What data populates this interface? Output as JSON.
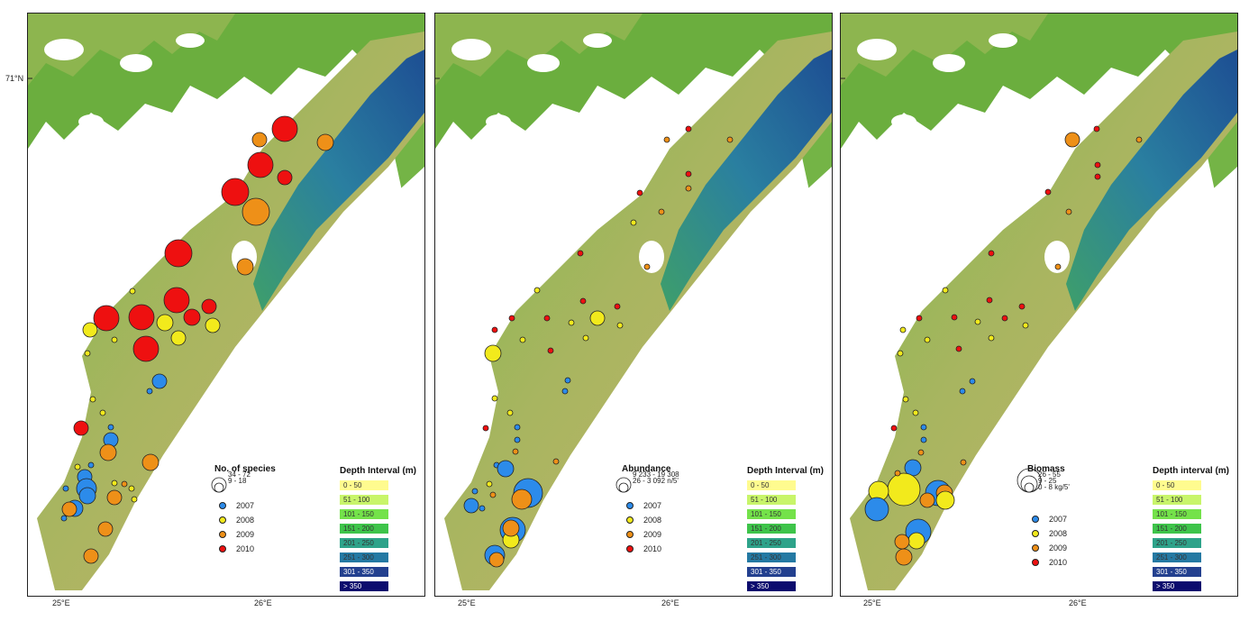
{
  "axes": {
    "lat_label": "71°N",
    "lon_left": "25°E",
    "lon_right": "26°E"
  },
  "depth_legend": {
    "title_a": "Depth interval (m)",
    "title_b": "Depth Interval (m)",
    "intervals": [
      {
        "label": "0 - 50",
        "color": "#fffb8f"
      },
      {
        "label": "51 - 100",
        "color": "#c8f56a"
      },
      {
        "label": "101 - 150",
        "color": "#74e24a"
      },
      {
        "label": "151 - 200",
        "color": "#3ec44a"
      },
      {
        "label": "201 - 250",
        "color": "#2ea38a"
      },
      {
        "label": "251 - 300",
        "color": "#2479a3"
      },
      {
        "label": "301 - 350",
        "color": "#23408f"
      },
      {
        "label": "> 350",
        "color": "#0c0c6e"
      }
    ]
  },
  "year_legend": [
    {
      "label": "2007",
      "color": "#2c8bea"
    },
    {
      "label": "2008",
      "color": "#f2ea1c"
    },
    {
      "label": "2009",
      "color": "#ee9018"
    },
    {
      "label": "2010",
      "color": "#ee1010"
    }
  ],
  "panels": [
    {
      "title": "No. of species",
      "size_classes": [
        "34 - 72",
        "9 - 18",
        ""
      ],
      "size_class_text": [
        "34 - 72",
        "9 - 18"
      ],
      "depth_title_key": "b"
    },
    {
      "title": "Abundance",
      "size_class_text": [
        "9 233 - 19 308",
        "26 - 3 092 n/5'"
      ],
      "depth_title_key": "b"
    },
    {
      "title": "Biomass",
      "size_class_text": [
        "26 - 55",
        "9 - 25",
        "0 - 8 kg/5'"
      ],
      "depth_title_key": "a"
    }
  ]
}
